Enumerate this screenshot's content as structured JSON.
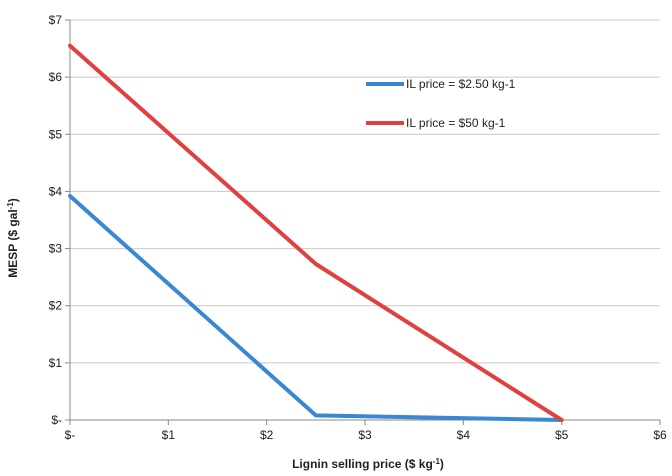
{
  "chart_data": {
    "type": "line",
    "xlabel": "Lignin selling price ($ kg",
    "xlabel_sup": "-1",
    "xlabel_end": ")",
    "ylabel": "MESP ($ gal",
    "ylabel_sup": "-1",
    "ylabel_end": ")",
    "xlim": [
      0,
      6
    ],
    "ylim": [
      0,
      7
    ],
    "x_ticks": [
      0,
      1,
      2,
      3,
      4,
      5,
      6
    ],
    "x_tick_labels": [
      "$-",
      "$1",
      "$2",
      "$3",
      "$4",
      "$5",
      "$6"
    ],
    "y_ticks": [
      0,
      1,
      2,
      3,
      4,
      5,
      6,
      7
    ],
    "y_tick_labels": [
      "$-",
      "$1",
      "$2",
      "$3",
      "$4",
      "$5",
      "$6",
      "$7"
    ],
    "grid": "horizontal",
    "legend_position": "top-right",
    "series": [
      {
        "name": "IL price = $2.50 kg-1",
        "color": "#3a87d4",
        "points": [
          [
            0,
            3.92
          ],
          [
            2.5,
            0.08
          ],
          [
            5,
            0.0
          ]
        ]
      },
      {
        "name": "IL price = $50 kg-1",
        "color": "#e0403e",
        "points": [
          [
            0,
            6.55
          ],
          [
            2.5,
            2.73
          ],
          [
            5,
            0.0
          ]
        ]
      }
    ]
  }
}
